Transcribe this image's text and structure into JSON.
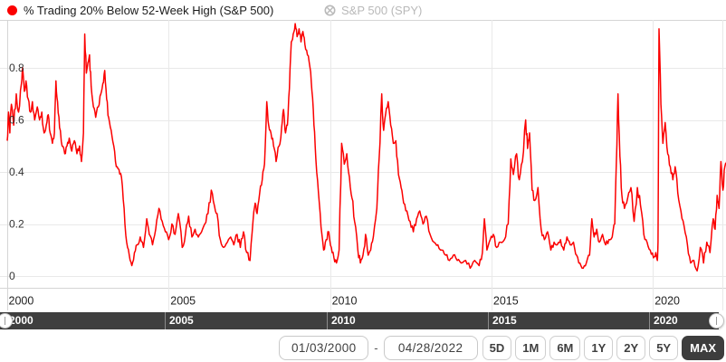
{
  "colors": {
    "series_red": "#fb0000",
    "legend_muted": "#b9b9b9",
    "grid": "#e9e9e9",
    "axis_border": "#d5d5d5",
    "navigator_bg": "#3f3f3f",
    "button_active_bg": "#3d3d3d"
  },
  "chart_data": {
    "type": "line",
    "title": "% Trading 20% Below 52-Week High (S&P 500)",
    "xlabel": "",
    "ylabel": "",
    "x_range": [
      2000.0,
      2022.32
    ],
    "y_range": [
      0,
      0.985
    ],
    "grid": true,
    "legend_position": "top",
    "x_ticks": [
      {
        "v": 2000,
        "label": "2000"
      },
      {
        "v": 2005,
        "label": "2005"
      },
      {
        "v": 2010,
        "label": "2010"
      },
      {
        "v": 2015,
        "label": "2015"
      },
      {
        "v": 2020,
        "label": "2020"
      }
    ],
    "y_ticks": [
      {
        "v": 0,
        "label": "0"
      },
      {
        "v": 0.2,
        "label": "0.2"
      },
      {
        "v": 0.4,
        "label": "0.4"
      },
      {
        "v": 0.6,
        "label": "0.6"
      },
      {
        "v": 0.8,
        "label": "0.8"
      }
    ],
    "series": [
      {
        "name": "% Trading 20% Below 52-Week High (S&P 500)",
        "color": "#fb0000",
        "visible": true,
        "points": [
          [
            2000.0,
            0.52
          ],
          [
            2000.04,
            0.63
          ],
          [
            2000.08,
            0.55
          ],
          [
            2000.13,
            0.66
          ],
          [
            2000.2,
            0.58
          ],
          [
            2000.28,
            0.7
          ],
          [
            2000.35,
            0.63
          ],
          [
            2000.44,
            0.74
          ],
          [
            2000.48,
            0.8
          ],
          [
            2000.53,
            0.71
          ],
          [
            2000.58,
            0.75
          ],
          [
            2000.65,
            0.68
          ],
          [
            2000.72,
            0.63
          ],
          [
            2000.78,
            0.67
          ],
          [
            2000.85,
            0.6
          ],
          [
            2000.93,
            0.65
          ],
          [
            2001.0,
            0.6
          ],
          [
            2001.07,
            0.63
          ],
          [
            2001.14,
            0.55
          ],
          [
            2001.21,
            0.58
          ],
          [
            2001.27,
            0.62
          ],
          [
            2001.33,
            0.55
          ],
          [
            2001.4,
            0.51
          ],
          [
            2001.46,
            0.55
          ],
          [
            2001.51,
            0.75
          ],
          [
            2001.56,
            0.67
          ],
          [
            2001.62,
            0.57
          ],
          [
            2001.7,
            0.5
          ],
          [
            2001.78,
            0.47
          ],
          [
            2001.85,
            0.5
          ],
          [
            2001.92,
            0.53
          ],
          [
            2002.0,
            0.48
          ],
          [
            2002.08,
            0.52
          ],
          [
            2002.16,
            0.47
          ],
          [
            2002.24,
            0.5
          ],
          [
            2002.3,
            0.44
          ],
          [
            2002.36,
            0.55
          ],
          [
            2002.4,
            0.93
          ],
          [
            2002.45,
            0.78
          ],
          [
            2002.5,
            0.82
          ],
          [
            2002.55,
            0.85
          ],
          [
            2002.6,
            0.73
          ],
          [
            2002.67,
            0.65
          ],
          [
            2002.74,
            0.61
          ],
          [
            2002.82,
            0.65
          ],
          [
            2002.9,
            0.7
          ],
          [
            2002.96,
            0.74
          ],
          [
            2003.02,
            0.79
          ],
          [
            2003.08,
            0.68
          ],
          [
            2003.14,
            0.61
          ],
          [
            2003.22,
            0.56
          ],
          [
            2003.3,
            0.5
          ],
          [
            2003.38,
            0.42
          ],
          [
            2003.46,
            0.41
          ],
          [
            2003.54,
            0.38
          ],
          [
            2003.62,
            0.26
          ],
          [
            2003.7,
            0.13
          ],
          [
            2003.78,
            0.08
          ],
          [
            2003.86,
            0.04
          ],
          [
            2003.94,
            0.09
          ],
          [
            2004.02,
            0.12
          ],
          [
            2004.12,
            0.15
          ],
          [
            2004.22,
            0.11
          ],
          [
            2004.32,
            0.22
          ],
          [
            2004.4,
            0.16
          ],
          [
            2004.5,
            0.12
          ],
          [
            2004.6,
            0.18
          ],
          [
            2004.7,
            0.26
          ],
          [
            2004.8,
            0.21
          ],
          [
            2004.9,
            0.17
          ],
          [
            2005.0,
            0.14
          ],
          [
            2005.1,
            0.2
          ],
          [
            2005.2,
            0.16
          ],
          [
            2005.3,
            0.24
          ],
          [
            2005.42,
            0.11
          ],
          [
            2005.52,
            0.16
          ],
          [
            2005.62,
            0.23
          ],
          [
            2005.72,
            0.15
          ],
          [
            2005.82,
            0.18
          ],
          [
            2005.92,
            0.15
          ],
          [
            2006.02,
            0.17
          ],
          [
            2006.12,
            0.2
          ],
          [
            2006.22,
            0.24
          ],
          [
            2006.32,
            0.33
          ],
          [
            2006.42,
            0.27
          ],
          [
            2006.5,
            0.24
          ],
          [
            2006.6,
            0.14
          ],
          [
            2006.7,
            0.11
          ],
          [
            2006.82,
            0.13
          ],
          [
            2006.92,
            0.15
          ],
          [
            2007.02,
            0.12
          ],
          [
            2007.12,
            0.16
          ],
          [
            2007.22,
            0.11
          ],
          [
            2007.32,
            0.17
          ],
          [
            2007.42,
            0.09
          ],
          [
            2007.52,
            0.06
          ],
          [
            2007.62,
            0.22
          ],
          [
            2007.68,
            0.28
          ],
          [
            2007.74,
            0.24
          ],
          [
            2007.82,
            0.32
          ],
          [
            2007.9,
            0.37
          ],
          [
            2007.97,
            0.43
          ],
          [
            2008.04,
            0.67
          ],
          [
            2008.1,
            0.58
          ],
          [
            2008.17,
            0.55
          ],
          [
            2008.25,
            0.5
          ],
          [
            2008.33,
            0.44
          ],
          [
            2008.42,
            0.5
          ],
          [
            2008.5,
            0.57
          ],
          [
            2008.56,
            0.64
          ],
          [
            2008.62,
            0.55
          ],
          [
            2008.68,
            0.58
          ],
          [
            2008.74,
            0.72
          ],
          [
            2008.8,
            0.9
          ],
          [
            2008.86,
            0.93
          ],
          [
            2008.92,
            0.97
          ],
          [
            2008.98,
            0.92
          ],
          [
            2009.04,
            0.95
          ],
          [
            2009.1,
            0.9
          ],
          [
            2009.16,
            0.94
          ],
          [
            2009.22,
            0.89
          ],
          [
            2009.3,
            0.85
          ],
          [
            2009.38,
            0.8
          ],
          [
            2009.44,
            0.71
          ],
          [
            2009.5,
            0.58
          ],
          [
            2009.56,
            0.45
          ],
          [
            2009.64,
            0.32
          ],
          [
            2009.72,
            0.19
          ],
          [
            2009.8,
            0.1
          ],
          [
            2009.88,
            0.14
          ],
          [
            2009.96,
            0.17
          ],
          [
            2010.04,
            0.11
          ],
          [
            2010.12,
            0.07
          ],
          [
            2010.2,
            0.05
          ],
          [
            2010.28,
            0.1
          ],
          [
            2010.36,
            0.51
          ],
          [
            2010.44,
            0.43
          ],
          [
            2010.52,
            0.47
          ],
          [
            2010.6,
            0.38
          ],
          [
            2010.68,
            0.3
          ],
          [
            2010.76,
            0.21
          ],
          [
            2010.86,
            0.1
          ],
          [
            2010.94,
            0.05
          ],
          [
            2011.02,
            0.08
          ],
          [
            2011.1,
            0.16
          ],
          [
            2011.18,
            0.08
          ],
          [
            2011.26,
            0.1
          ],
          [
            2011.34,
            0.15
          ],
          [
            2011.45,
            0.26
          ],
          [
            2011.52,
            0.45
          ],
          [
            2011.6,
            0.7
          ],
          [
            2011.66,
            0.56
          ],
          [
            2011.72,
            0.62
          ],
          [
            2011.8,
            0.67
          ],
          [
            2011.88,
            0.58
          ],
          [
            2011.96,
            0.51
          ],
          [
            2012.04,
            0.52
          ],
          [
            2012.12,
            0.39
          ],
          [
            2012.2,
            0.34
          ],
          [
            2012.28,
            0.28
          ],
          [
            2012.38,
            0.25
          ],
          [
            2012.48,
            0.21
          ],
          [
            2012.58,
            0.17
          ],
          [
            2012.68,
            0.22
          ],
          [
            2012.78,
            0.25
          ],
          [
            2012.88,
            0.2
          ],
          [
            2012.98,
            0.23
          ],
          [
            2013.1,
            0.16
          ],
          [
            2013.22,
            0.13
          ],
          [
            2013.34,
            0.12
          ],
          [
            2013.46,
            0.1
          ],
          [
            2013.58,
            0.08
          ],
          [
            2013.7,
            0.06
          ],
          [
            2013.82,
            0.08
          ],
          [
            2013.94,
            0.06
          ],
          [
            2014.06,
            0.05
          ],
          [
            2014.2,
            0.06
          ],
          [
            2014.34,
            0.03
          ],
          [
            2014.48,
            0.06
          ],
          [
            2014.62,
            0.04
          ],
          [
            2014.72,
            0.09
          ],
          [
            2014.78,
            0.22
          ],
          [
            2014.86,
            0.1
          ],
          [
            2014.96,
            0.14
          ],
          [
            2015.06,
            0.16
          ],
          [
            2015.16,
            0.11
          ],
          [
            2015.28,
            0.13
          ],
          [
            2015.4,
            0.14
          ],
          [
            2015.52,
            0.2
          ],
          [
            2015.6,
            0.45
          ],
          [
            2015.68,
            0.39
          ],
          [
            2015.78,
            0.47
          ],
          [
            2015.86,
            0.37
          ],
          [
            2015.96,
            0.44
          ],
          [
            2016.06,
            0.6
          ],
          [
            2016.12,
            0.49
          ],
          [
            2016.18,
            0.55
          ],
          [
            2016.26,
            0.33
          ],
          [
            2016.34,
            0.29
          ],
          [
            2016.44,
            0.34
          ],
          [
            2016.54,
            0.18
          ],
          [
            2016.64,
            0.14
          ],
          [
            2016.74,
            0.17
          ],
          [
            2016.84,
            0.1
          ],
          [
            2016.94,
            0.13
          ],
          [
            2017.04,
            0.12
          ],
          [
            2017.14,
            0.14
          ],
          [
            2017.24,
            0.1
          ],
          [
            2017.34,
            0.15
          ],
          [
            2017.44,
            0.12
          ],
          [
            2017.54,
            0.13
          ],
          [
            2017.64,
            0.08
          ],
          [
            2017.74,
            0.05
          ],
          [
            2017.84,
            0.03
          ],
          [
            2017.94,
            0.05
          ],
          [
            2018.04,
            0.08
          ],
          [
            2018.11,
            0.22
          ],
          [
            2018.18,
            0.15
          ],
          [
            2018.26,
            0.18
          ],
          [
            2018.34,
            0.13
          ],
          [
            2018.44,
            0.16
          ],
          [
            2018.54,
            0.12
          ],
          [
            2018.64,
            0.14
          ],
          [
            2018.74,
            0.15
          ],
          [
            2018.82,
            0.2
          ],
          [
            2018.87,
            0.44
          ],
          [
            2018.92,
            0.7
          ],
          [
            2018.98,
            0.46
          ],
          [
            2019.04,
            0.31
          ],
          [
            2019.12,
            0.26
          ],
          [
            2019.22,
            0.3
          ],
          [
            2019.32,
            0.34
          ],
          [
            2019.42,
            0.21
          ],
          [
            2019.52,
            0.34
          ],
          [
            2019.62,
            0.27
          ],
          [
            2019.72,
            0.16
          ],
          [
            2019.82,
            0.13
          ],
          [
            2019.92,
            0.1
          ],
          [
            2020.02,
            0.07
          ],
          [
            2020.09,
            0.09
          ],
          [
            2020.14,
            0.06
          ],
          [
            2020.16,
            0.13
          ],
          [
            2020.19,
            0.95
          ],
          [
            2020.25,
            0.66
          ],
          [
            2020.31,
            0.51
          ],
          [
            2020.38,
            0.59
          ],
          [
            2020.46,
            0.47
          ],
          [
            2020.54,
            0.42
          ],
          [
            2020.62,
            0.37
          ],
          [
            2020.69,
            0.42
          ],
          [
            2020.77,
            0.32
          ],
          [
            2020.87,
            0.25
          ],
          [
            2020.97,
            0.19
          ],
          [
            2021.07,
            0.12
          ],
          [
            2021.17,
            0.05
          ],
          [
            2021.27,
            0.06
          ],
          [
            2021.37,
            0.02
          ],
          [
            2021.47,
            0.11
          ],
          [
            2021.57,
            0.05
          ],
          [
            2021.67,
            0.13
          ],
          [
            2021.77,
            0.09
          ],
          [
            2021.87,
            0.22
          ],
          [
            2021.93,
            0.18
          ],
          [
            2021.99,
            0.31
          ],
          [
            2022.05,
            0.26
          ],
          [
            2022.11,
            0.44
          ],
          [
            2022.17,
            0.33
          ],
          [
            2022.23,
            0.42
          ],
          [
            2022.3,
            0.45
          ]
        ]
      },
      {
        "name": "S&P 500 (SPY)",
        "color": "#b9b9b9",
        "visible": false,
        "points": []
      }
    ]
  },
  "navigator": {
    "labels": [
      "2000",
      "2005",
      "2010",
      "2015",
      "2020"
    ]
  },
  "toolbar": {
    "start_date": "01/03/2000",
    "separator": "-",
    "end_date": "04/28/2022",
    "range_buttons": [
      "5D",
      "1M",
      "6M",
      "1Y",
      "2Y",
      "5Y",
      "MAX"
    ],
    "active_button": "MAX"
  }
}
